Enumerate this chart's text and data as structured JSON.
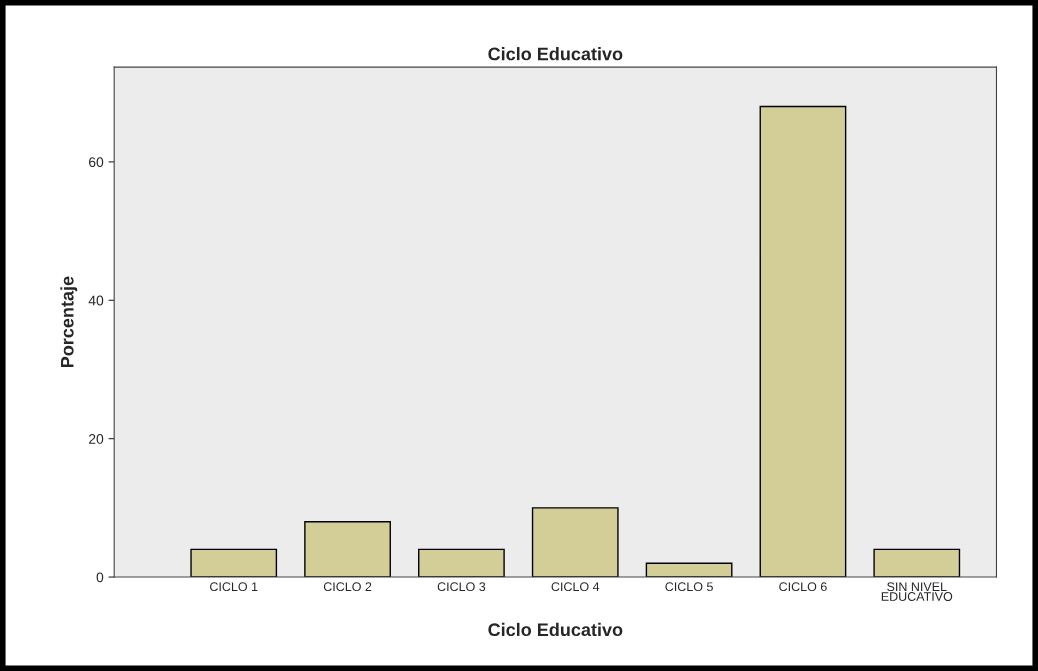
{
  "chart_data": {
    "type": "bar",
    "title": "Ciclo Educativo",
    "xlabel": "Ciclo Educativo",
    "ylabel": "Porcentaje",
    "categories": [
      "CICLO 1",
      "CICLO 2",
      "CICLO 3",
      "CICLO 4",
      "CICLO 5",
      "CICLO 6",
      "SIN NIVEL\nEDUCATIVO"
    ],
    "values": [
      4,
      8,
      4,
      10,
      2,
      68,
      4
    ],
    "color": "#d3ce98",
    "ylim": [
      0,
      73.7
    ],
    "yticks": [
      0,
      20,
      40,
      60
    ],
    "grid": false,
    "legend": false
  }
}
